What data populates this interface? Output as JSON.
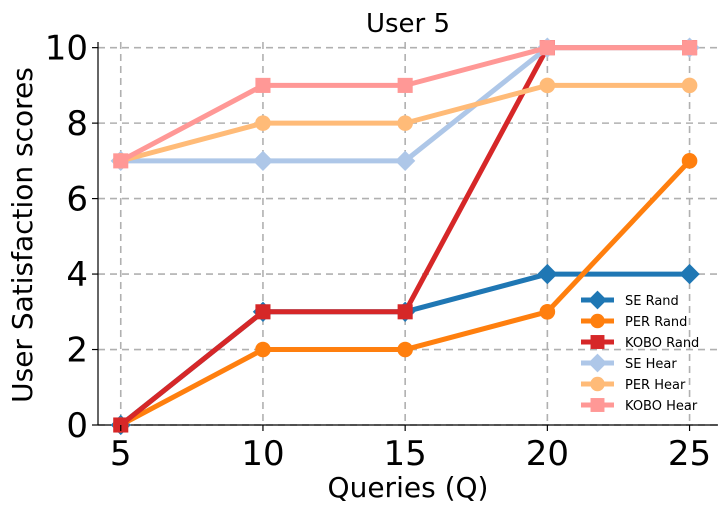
{
  "chart_data": {
    "type": "line",
    "title": "User 5",
    "xlabel": "Queries (Q)",
    "ylabel": "User Satisfaction scores",
    "x": [
      5,
      10,
      15,
      20,
      25
    ],
    "xlim": [
      4.2,
      26
    ],
    "ylim": [
      0,
      10.15
    ],
    "xticks": [
      5,
      10,
      15,
      20,
      25
    ],
    "yticks": [
      0,
      2,
      4,
      6,
      8,
      10
    ],
    "grid": true,
    "legend_position": "lower-right",
    "series": [
      {
        "name": "SE Rand",
        "values": [
          0,
          3,
          3,
          4,
          4
        ],
        "color": "#1f77b4",
        "marker": "diamond"
      },
      {
        "name": "PER Rand",
        "values": [
          0,
          2,
          2,
          3,
          7
        ],
        "color": "#ff7f0e",
        "marker": "circle"
      },
      {
        "name": "KOBO Rand",
        "values": [
          0,
          3,
          3,
          10,
          10
        ],
        "color": "#d62728",
        "marker": "square"
      },
      {
        "name": "SE Hear",
        "values": [
          7,
          7,
          7,
          10,
          10
        ],
        "color": "#aec7e8",
        "marker": "diamond"
      },
      {
        "name": "PER Hear",
        "values": [
          7,
          8,
          8,
          9,
          9
        ],
        "color": "#ffbb78",
        "marker": "circle"
      },
      {
        "name": "KOBO Hear",
        "values": [
          7,
          9,
          9,
          10,
          10
        ],
        "color": "#ff9896",
        "marker": "square"
      }
    ]
  }
}
